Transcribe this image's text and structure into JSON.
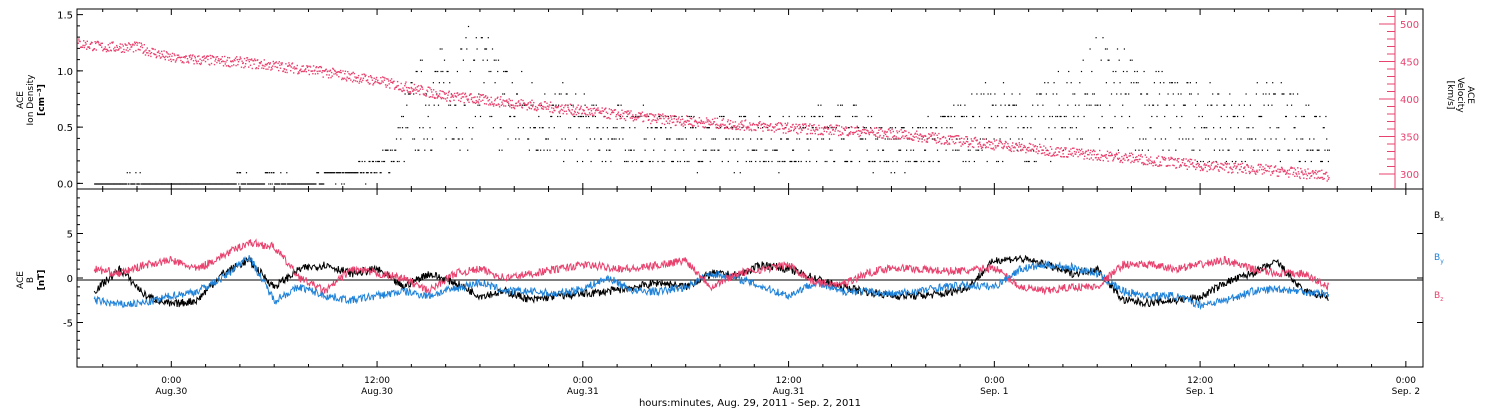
{
  "colors": {
    "black": "#000000",
    "blue": "#1f82d9",
    "pink": "#e8426e"
  },
  "footer_label": "hours:minutes, Aug. 29, 2011 - Sep.  2, 2011",
  "x_ticks": [
    {
      "hours": 0,
      "line1": "0:00",
      "line2": "Aug.30"
    },
    {
      "hours": 12,
      "line1": "12:00",
      "line2": "Aug.30"
    },
    {
      "hours": 24,
      "line1": "0:00",
      "line2": "Aug.31"
    },
    {
      "hours": 36,
      "line1": "12:00",
      "line2": "Aug.31"
    },
    {
      "hours": 48,
      "line1": "0:00",
      "line2": "Sep. 1"
    },
    {
      "hours": 60,
      "line1": "12:00",
      "line2": "Sep. 1"
    },
    {
      "hours": 72,
      "line1": "0:00",
      "line2": "Sep. 2"
    }
  ],
  "chart_data": [
    {
      "type": "scatter",
      "panel": "top",
      "ylabel_left": [
        "ACE",
        "Ion Density",
        "[cm⁻³]"
      ],
      "ylabel_right": [
        "ACE",
        "Velocity",
        "[km/s]"
      ],
      "x_range_hours": [
        -5.5,
        73
      ],
      "left_axis": {
        "ylim": [
          -0.05,
          1.55
        ],
        "ticks": [
          "0.0",
          "0.5",
          "1.0",
          "1.5"
        ]
      },
      "right_axis": {
        "ylim": [
          280,
          520
        ],
        "ticks": [
          "300",
          "350",
          "400",
          "450",
          "500"
        ]
      },
      "series": [
        {
          "name": "",
          "color": "black",
          "axis": "left",
          "description_points_hours_value": [
            [
              -4.5,
              0.02
            ],
            [
              -2,
              0.05
            ],
            [
              0,
              0.02
            ],
            [
              3,
              0.04
            ],
            [
              6,
              0.05
            ],
            [
              8,
              0.03
            ],
            [
              10,
              0.1
            ],
            [
              12,
              0.2
            ],
            [
              13,
              0.35
            ],
            [
              14,
              0.8
            ],
            [
              15,
              0.9
            ],
            [
              16,
              1.0
            ],
            [
              18,
              1.1
            ],
            [
              20,
              0.8
            ],
            [
              22,
              0.7
            ],
            [
              24,
              0.6
            ],
            [
              26,
              0.55
            ],
            [
              28,
              0.5
            ],
            [
              30,
              0.5
            ],
            [
              32,
              0.45
            ],
            [
              34,
              0.5
            ],
            [
              36,
              0.45
            ],
            [
              38,
              0.6
            ],
            [
              40,
              0.55
            ],
            [
              42,
              0.4
            ],
            [
              44,
              0.45
            ],
            [
              46,
              0.6
            ],
            [
              48,
              0.7
            ],
            [
              50,
              0.6
            ],
            [
              52,
              0.8
            ],
            [
              54,
              1.0
            ],
            [
              56,
              0.9
            ],
            [
              58,
              0.8
            ],
            [
              60,
              0.7
            ],
            [
              62,
              0.6
            ],
            [
              64,
              0.7
            ],
            [
              66,
              0.6
            ],
            [
              67.5,
              0.6
            ]
          ]
        },
        {
          "name": "",
          "color": "pink",
          "axis": "right",
          "description_points_hours_value": [
            [
              -5.5,
              475
            ],
            [
              -4,
              470
            ],
            [
              -2,
              470
            ],
            [
              0,
              455
            ],
            [
              4,
              450
            ],
            [
              8,
              440
            ],
            [
              12,
              425
            ],
            [
              16,
              405
            ],
            [
              20,
              395
            ],
            [
              24,
              385
            ],
            [
              28,
              375
            ],
            [
              32,
              368
            ],
            [
              36,
              362
            ],
            [
              40,
              358
            ],
            [
              44,
              350
            ],
            [
              48,
              340
            ],
            [
              52,
              330
            ],
            [
              56,
              322
            ],
            [
              60,
              312
            ],
            [
              64,
              306
            ],
            [
              67.5,
              298
            ]
          ]
        }
      ]
    },
    {
      "type": "line",
      "panel": "bottom",
      "ylabel": [
        "ACE",
        "B",
        "[nT]"
      ],
      "x_range_hours": [
        -5.5,
        73
      ],
      "ylim": [
        -10,
        10
      ],
      "y_ticks": [
        "-5",
        "0",
        "5"
      ],
      "legend_position": "right",
      "series": [
        {
          "name": "Bx",
          "color": "black",
          "x_hours": [
            -4.5,
            -3,
            -1.5,
            0,
            1.5,
            3,
            4.5,
            6,
            7.5,
            9,
            10.5,
            12,
            13.5,
            15,
            16.5,
            18,
            19.5,
            21,
            22.5,
            24,
            25.5,
            27,
            28.5,
            30,
            31.5,
            33,
            34.5,
            36,
            37.5,
            39,
            40.5,
            42,
            43.5,
            45,
            46.5,
            48,
            49.5,
            51,
            52.5,
            54,
            55.5,
            57,
            58.5,
            60,
            61.5,
            63,
            64.5,
            66,
            67.5
          ],
          "values": [
            -1.5,
            1,
            -2,
            -3,
            -2.5,
            0.5,
            2,
            -1,
            1,
            1.5,
            0.5,
            1,
            -1,
            0.5,
            -0.5,
            -2,
            -1.5,
            -2.5,
            -2,
            -1.8,
            -1.5,
            -1,
            -0.5,
            -1,
            0.5,
            0.3,
            1.5,
            1,
            0,
            -1,
            -1.5,
            -2,
            -2,
            -1.8,
            -1,
            2,
            2.2,
            1.5,
            0.5,
            1,
            -2.5,
            -2.8,
            -2.5,
            -2.2,
            -0.5,
            0.5,
            1.8,
            -1.5,
            -2.2
          ]
        },
        {
          "name": "By",
          "color": "blue",
          "x_hours": [
            -4.5,
            -3,
            -1.5,
            0,
            1.5,
            3,
            4.5,
            6,
            7.5,
            9,
            10.5,
            12,
            13.5,
            15,
            16.5,
            18,
            19.5,
            21,
            22.5,
            24,
            25.5,
            27,
            28.5,
            30,
            31.5,
            33,
            34.5,
            36,
            37.5,
            39,
            40.5,
            42,
            43.5,
            45,
            46.5,
            48,
            49.5,
            51,
            52.5,
            54,
            55.5,
            57,
            58.5,
            60,
            61.5,
            63,
            64.5,
            66,
            67.5
          ],
          "values": [
            -2.5,
            -3,
            -2.8,
            -2,
            -1.5,
            0,
            2.5,
            -2.5,
            -1,
            -2,
            -2.5,
            -2,
            -1.5,
            -2,
            -1.2,
            -0.5,
            -1.5,
            -1.5,
            -1.8,
            -1.2,
            0,
            -1.5,
            -1.5,
            -1,
            0.5,
            0,
            -1,
            -2,
            -0.5,
            -1.5,
            -1.5,
            -1.8,
            -1.5,
            -1,
            -0.8,
            -1,
            1,
            1.5,
            1.2,
            0.5,
            -1.5,
            -2,
            -2,
            -3,
            -2.5,
            -1.5,
            -1.2,
            -1.5,
            -1.8
          ]
        },
        {
          "name": "Bz",
          "color": "pink",
          "x_hours": [
            -4.5,
            -3,
            -1.5,
            0,
            1.5,
            3,
            4.5,
            6,
            7.5,
            9,
            10.5,
            12,
            13.5,
            15,
            16.5,
            18,
            19.5,
            21,
            22.5,
            24,
            25.5,
            27,
            28.5,
            30,
            31.5,
            33,
            34.5,
            36,
            37.5,
            39,
            40.5,
            42,
            43.5,
            45,
            46.5,
            48,
            49.5,
            51,
            52.5,
            54,
            55.5,
            57,
            58.5,
            60,
            61.5,
            63,
            64.5,
            66,
            67.5
          ],
          "values": [
            1,
            0.5,
            1.5,
            2,
            1,
            2.5,
            4,
            3.5,
            0,
            -1.5,
            1,
            0.5,
            0,
            -1.5,
            0.5,
            1,
            0,
            0.5,
            1,
            1.5,
            1.2,
            1,
            1.5,
            2,
            -1,
            0.5,
            1,
            1.5,
            -0.5,
            -0.8,
            0.5,
            1.2,
            1,
            0.8,
            0.8,
            1.2,
            -1,
            -1.5,
            -1,
            -1,
            1.5,
            1.5,
            1,
            1.5,
            2,
            1,
            0.5,
            0.5,
            -1
          ]
        }
      ],
      "legend": [
        {
          "name": "Bx",
          "letter": "B",
          "sub": "x",
          "color": "black"
        },
        {
          "name": "By",
          "letter": "B",
          "sub": "y",
          "color": "blue"
        },
        {
          "name": "Bz",
          "letter": "B",
          "sub": "z",
          "color": "pink"
        }
      ]
    }
  ]
}
